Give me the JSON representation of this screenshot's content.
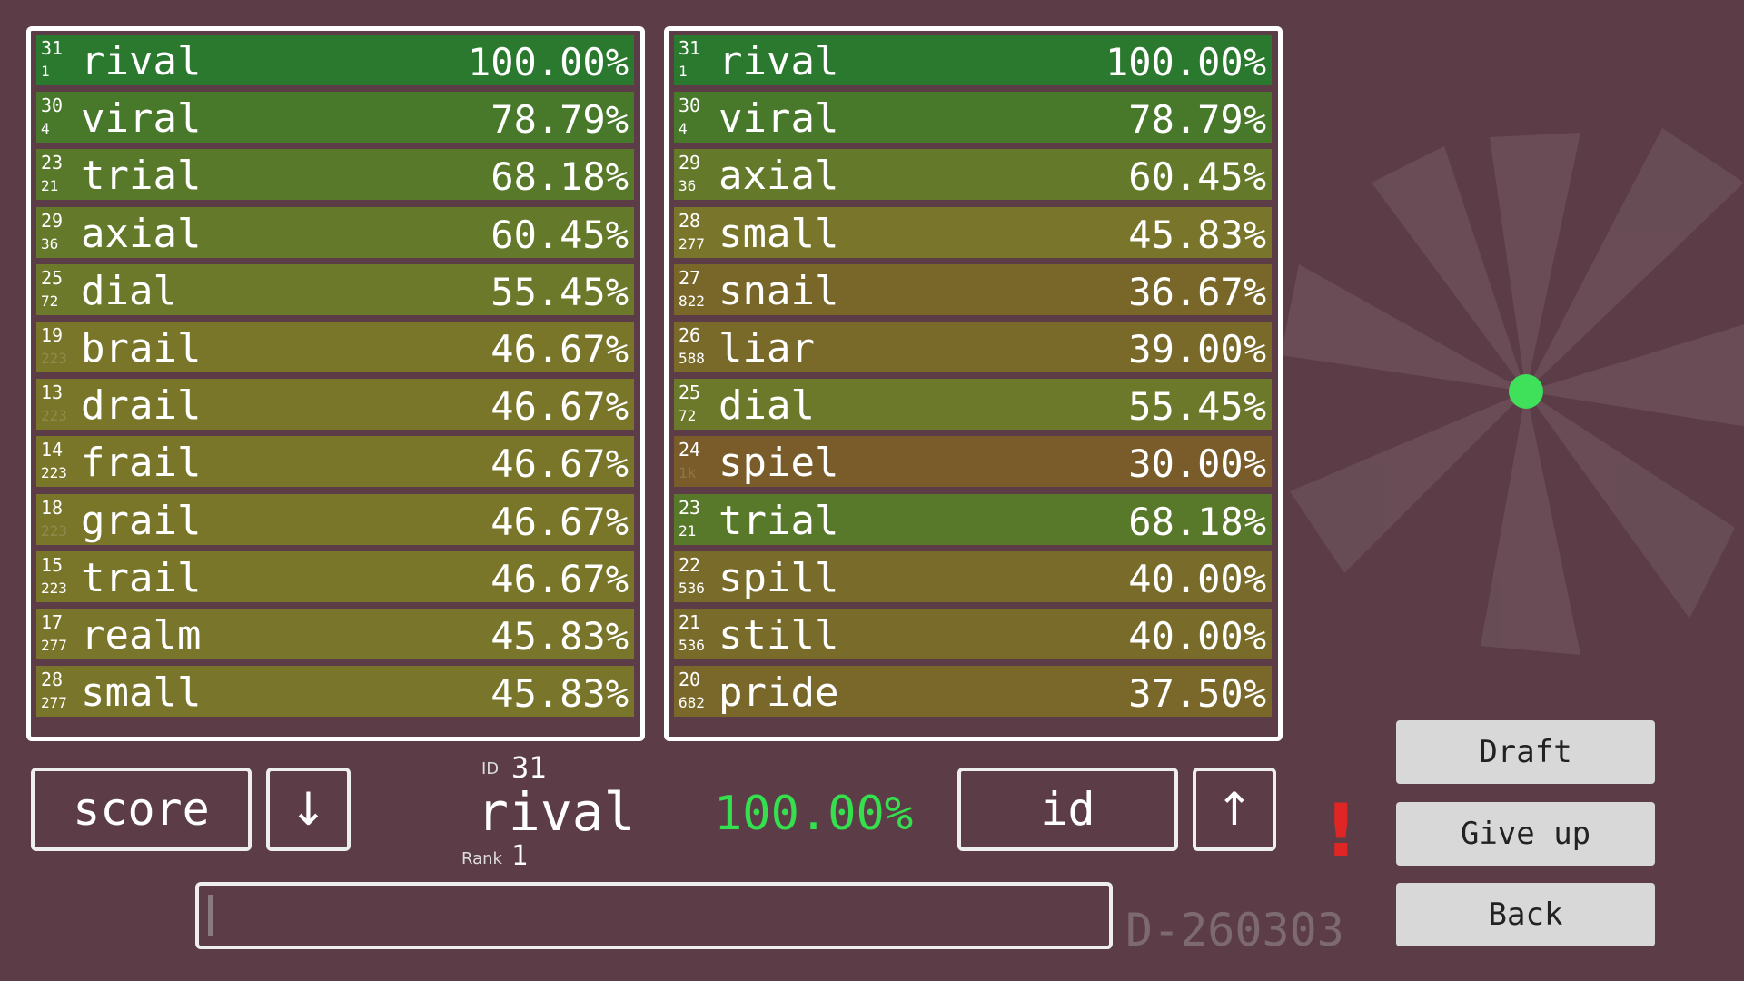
{
  "lists": [
    {
      "rows": [
        {
          "id": "31",
          "rank": "1",
          "word": "rival",
          "score": "100.00%"
        },
        {
          "id": "30",
          "rank": "4",
          "word": "viral",
          "score": "78.79%"
        },
        {
          "id": "23",
          "rank": "21",
          "word": "trial",
          "score": "68.18%"
        },
        {
          "id": "29",
          "rank": "36",
          "word": "axial",
          "score": "60.45%"
        },
        {
          "id": "25",
          "rank": "72",
          "word": "dial",
          "score": "55.45%"
        },
        {
          "id": "19",
          "rank": "223",
          "word": "brail",
          "score": "46.67%",
          "faded": true
        },
        {
          "id": "13",
          "rank": "223",
          "word": "drail",
          "score": "46.67%",
          "faded": true
        },
        {
          "id": "14",
          "rank": "223",
          "word": "frail",
          "score": "46.67%"
        },
        {
          "id": "18",
          "rank": "223",
          "word": "grail",
          "score": "46.67%",
          "faded": true
        },
        {
          "id": "15",
          "rank": "223",
          "word": "trail",
          "score": "46.67%"
        },
        {
          "id": "17",
          "rank": "277",
          "word": "realm",
          "score": "45.83%"
        },
        {
          "id": "28",
          "rank": "277",
          "word": "small",
          "score": "45.83%"
        }
      ]
    },
    {
      "rows": [
        {
          "id": "31",
          "rank": "1",
          "word": "rival",
          "score": "100.00%"
        },
        {
          "id": "30",
          "rank": "4",
          "word": "viral",
          "score": "78.79%"
        },
        {
          "id": "29",
          "rank": "36",
          "word": "axial",
          "score": "60.45%"
        },
        {
          "id": "28",
          "rank": "277",
          "word": "small",
          "score": "45.83%"
        },
        {
          "id": "27",
          "rank": "822",
          "word": "snail",
          "score": "36.67%"
        },
        {
          "id": "26",
          "rank": "588",
          "word": "liar",
          "score": "39.00%"
        },
        {
          "id": "25",
          "rank": "72",
          "word": "dial",
          "score": "55.45%"
        },
        {
          "id": "24",
          "rank": "1k",
          "word": "spiel",
          "score": "30.00%",
          "faded": true
        },
        {
          "id": "23",
          "rank": "21",
          "word": "trial",
          "score": "68.18%"
        },
        {
          "id": "22",
          "rank": "536",
          "word": "spill",
          "score": "40.00%"
        },
        {
          "id": "21",
          "rank": "536",
          "word": "still",
          "score": "40.00%"
        },
        {
          "id": "20",
          "rank": "682",
          "word": "pride",
          "score": "37.50%"
        }
      ]
    }
  ],
  "controls": {
    "sort_left": "score",
    "sort_right": "id",
    "down": "↓",
    "up": "↑",
    "alert": "!"
  },
  "current": {
    "id_label": "ID",
    "id": "31",
    "word": "rival",
    "score": "100.00%",
    "rank_label": "Rank",
    "rank": "1"
  },
  "code": "D-260303",
  "buttons": [
    "Draft",
    "Give up",
    "Back"
  ]
}
